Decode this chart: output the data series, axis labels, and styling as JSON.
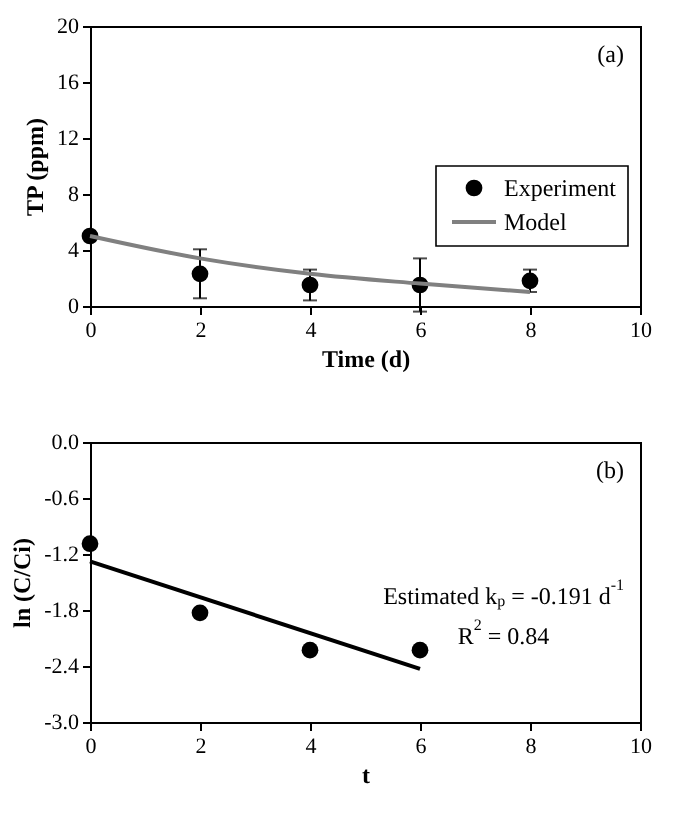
{
  "chart_data": [
    {
      "type": "scatter",
      "xlabel": "Time (d)",
      "ylabel": "TP (ppm)",
      "xlim": [
        0,
        10
      ],
      "xticks": [
        0,
        2,
        4,
        6,
        8,
        10
      ],
      "ylim": [
        0,
        20
      ],
      "yticks": [
        0,
        4,
        8,
        12,
        16,
        20
      ],
      "grid": false,
      "legend": "right",
      "annotations": [
        "(a)"
      ],
      "series": [
        {
          "name": "Experiment",
          "marker": "circle",
          "color": "#000000",
          "x": [
            0,
            2,
            4,
            6,
            8
          ],
          "values": [
            5.0,
            2.3,
            1.5,
            1.5,
            1.8
          ],
          "errors": [
            null,
            1.75,
            1.1,
            1.9,
            0.8
          ]
        },
        {
          "name": "Model",
          "type": "line",
          "color": "#808080",
          "x": [
            0,
            2,
            4,
            6,
            8
          ],
          "values": [
            5.0,
            3.4,
            2.3,
            1.6,
            1.0
          ]
        }
      ]
    },
    {
      "type": "scatter",
      "xlabel": "t",
      "ylabel": "ln (C/Ci)",
      "xlim": [
        0,
        10
      ],
      "xticks": [
        0,
        2,
        4,
        6,
        8,
        10
      ],
      "ylim": [
        -3.0,
        0.0
      ],
      "yticks": [
        {
          "value": 0,
          "label": "0.0"
        },
        -0.6,
        -1.2,
        -1.8,
        -2.4,
        {
          "value": -3,
          "label": "-3.0"
        }
      ],
      "grid": false,
      "annotations": [
        "(b)",
        "Estimated k$_{p}$ = -0.191 d$^{-1}$",
        "R$^{2}$ = 0.84"
      ],
      "series": [
        {
          "marker": "circle",
          "color": "#000000",
          "x": [
            0,
            2,
            4,
            6
          ],
          "values": [
            -1.09,
            -1.83,
            -2.23,
            -2.23
          ]
        },
        {
          "type": "line",
          "color": "#000000",
          "x": [
            0,
            6
          ],
          "values": [
            -1.28,
            -2.43
          ]
        }
      ]
    }
  ]
}
